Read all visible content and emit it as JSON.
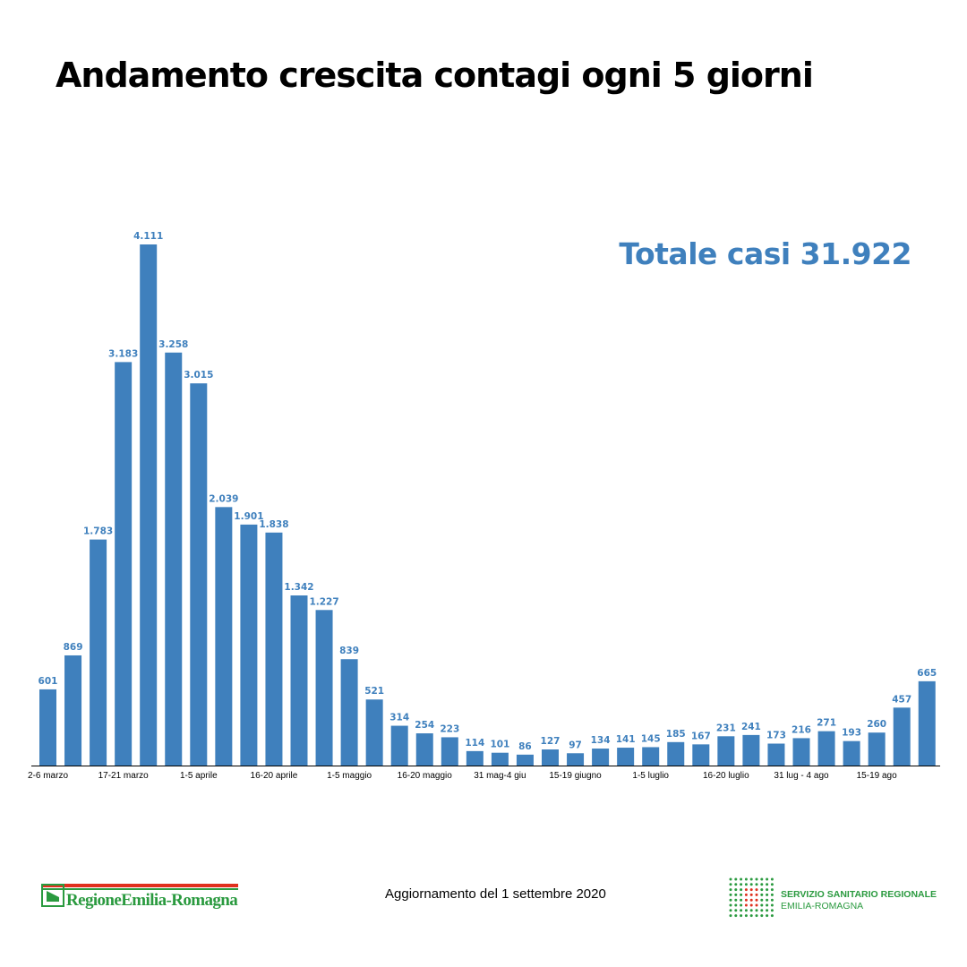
{
  "title": "Andamento crescita contagi ogni 5 giorni",
  "total_label": "Totale casi 31.922",
  "footer": {
    "update_text": "Aggiornamento del 1 settembre 2020",
    "left_logo": "RegioneEmilia-Romagna",
    "right_logo_line1": "SERVIZIO SANITARIO REGIONALE",
    "right_logo_line2": "EMILIA-ROMAGNA"
  },
  "colors": {
    "bar": "#3f80bd",
    "label": "#3f80bd",
    "total": "#3f80bd",
    "logo_green": "#2a9a3f",
    "logo_red": "#e0301e"
  },
  "chart_data": {
    "type": "bar",
    "title": "Andamento crescita contagi ogni 5 giorni",
    "values": [
      601,
      869,
      1783,
      3183,
      4111,
      3258,
      3015,
      2039,
      1901,
      1838,
      1342,
      1227,
      839,
      521,
      314,
      254,
      223,
      114,
      101,
      86,
      127,
      97,
      134,
      141,
      145,
      185,
      167,
      231,
      241,
      173,
      216,
      271,
      193,
      260,
      457,
      665
    ],
    "value_labels": [
      "601",
      "869",
      "1.783",
      "3.183",
      "4.111",
      "3.258",
      "3.015",
      "2.039",
      "1.901",
      "1.838",
      "1.342",
      "1.227",
      "839",
      "521",
      "314",
      "254",
      "223",
      "114",
      "101",
      "86",
      "127",
      "97",
      "134",
      "141",
      "145",
      "185",
      "167",
      "231",
      "241",
      "173",
      "216",
      "271",
      "193",
      "260",
      "457",
      "665"
    ],
    "tick_labels": [
      {
        "index": 0,
        "label": "2-6 marzo"
      },
      {
        "index": 3,
        "label": "17-21 marzo"
      },
      {
        "index": 6,
        "label": "1-5 aprile"
      },
      {
        "index": 9,
        "label": "16-20 aprile"
      },
      {
        "index": 12,
        "label": "1-5 maggio"
      },
      {
        "index": 15,
        "label": "16-20 maggio"
      },
      {
        "index": 18,
        "label": "31 mag-4 giu"
      },
      {
        "index": 21,
        "label": "15-19 giugno"
      },
      {
        "index": 24,
        "label": "1-5 luglio"
      },
      {
        "index": 27,
        "label": "16-20 luglio"
      },
      {
        "index": 30,
        "label": "31 lug - 4 ago"
      },
      {
        "index": 33,
        "label": "15-19 ago"
      }
    ],
    "xlabel": "",
    "ylabel": "",
    "ylim": [
      0,
      4111
    ],
    "grid": false,
    "legend": "none"
  }
}
